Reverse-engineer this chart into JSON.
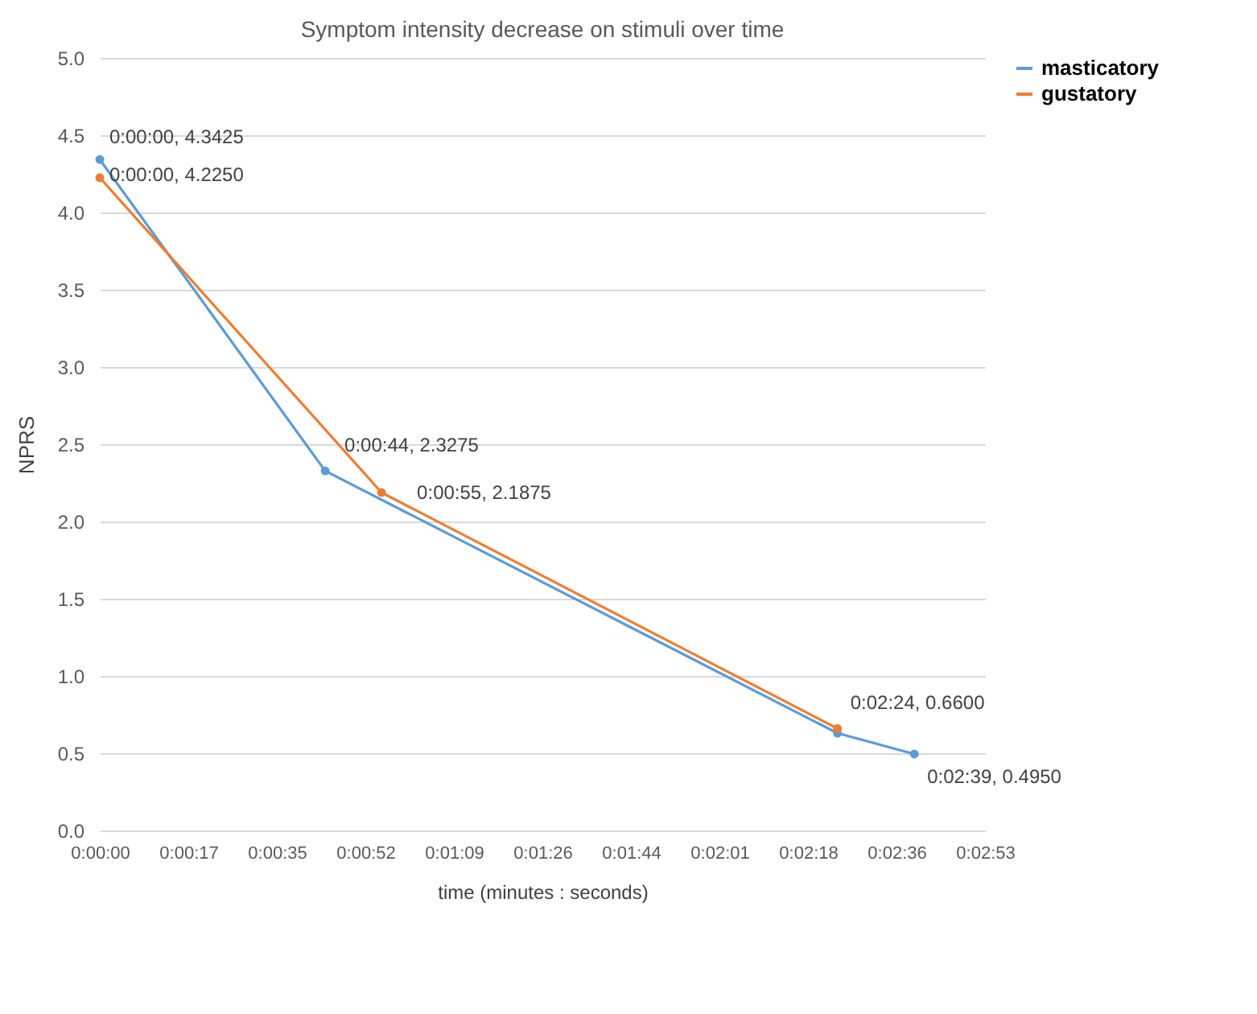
{
  "chart_data": {
    "type": "line",
    "title": "Symptom intensity decrease on stimuli over time",
    "xlabel": "time (minutes : seconds)",
    "ylabel": "NPRS",
    "series": [
      {
        "name": "masticatory",
        "color": "#5b9bd5",
        "x": [
          0,
          44,
          144,
          159
        ],
        "values": [
          4.3425,
          2.3275,
          0.63,
          0.495
        ]
      },
      {
        "name": "gustatory",
        "color": "#ed7d31",
        "x": [
          0,
          55,
          144
        ],
        "values": [
          4.225,
          2.1875,
          0.66
        ]
      }
    ],
    "xlim": [
      0,
      172.8
    ],
    "xticks": [
      {
        "value": 0,
        "label": "0:00:00"
      },
      {
        "value": 17.28,
        "label": "0:00:17"
      },
      {
        "value": 34.56,
        "label": "0:00:35"
      },
      {
        "value": 51.84,
        "label": "0:00:52"
      },
      {
        "value": 69.12,
        "label": "0:01:09"
      },
      {
        "value": 86.4,
        "label": "0:01:26"
      },
      {
        "value": 103.68,
        "label": "0:01:44"
      },
      {
        "value": 120.96,
        "label": "0:02:01"
      },
      {
        "value": 138.24,
        "label": "0:02:18"
      },
      {
        "value": 155.52,
        "label": "0:02:36"
      },
      {
        "value": 172.8,
        "label": "0:02:53"
      }
    ],
    "ylim": [
      0,
      5
    ],
    "yticks": [
      {
        "value": 0,
        "label": "0.0"
      },
      {
        "value": 0.5,
        "label": "0.5"
      },
      {
        "value": 1,
        "label": "1.0"
      },
      {
        "value": 1.5,
        "label": "1.5"
      },
      {
        "value": 2,
        "label": "2.0"
      },
      {
        "value": 2.5,
        "label": "2.5"
      },
      {
        "value": 3,
        "label": "3.0"
      },
      {
        "value": 3.5,
        "label": "3.5"
      },
      {
        "value": 4,
        "label": "4.0"
      },
      {
        "value": 4.5,
        "label": "4.5"
      },
      {
        "value": 5,
        "label": "5.0"
      }
    ],
    "annotations": [
      {
        "text": "0:00:00, 4.3425",
        "x": 0,
        "y": 4.3425
      },
      {
        "text": "0:00:00, 4.2250",
        "x": 0,
        "y": 4.225
      },
      {
        "text": "0:00:44, 2.3275",
        "x": 44,
        "y": 2.3275
      },
      {
        "text": "0:00:55, 2.1875",
        "x": 55,
        "y": 2.1875
      },
      {
        "text": "0:02:24, 0.6600",
        "x": 144,
        "y": 0.66
      },
      {
        "text": "0:02:39, 0.4950",
        "x": 159,
        "y": 0.495
      }
    ],
    "grid": "y",
    "legend": "right",
    "marker": "circle",
    "line_style": "solid"
  }
}
